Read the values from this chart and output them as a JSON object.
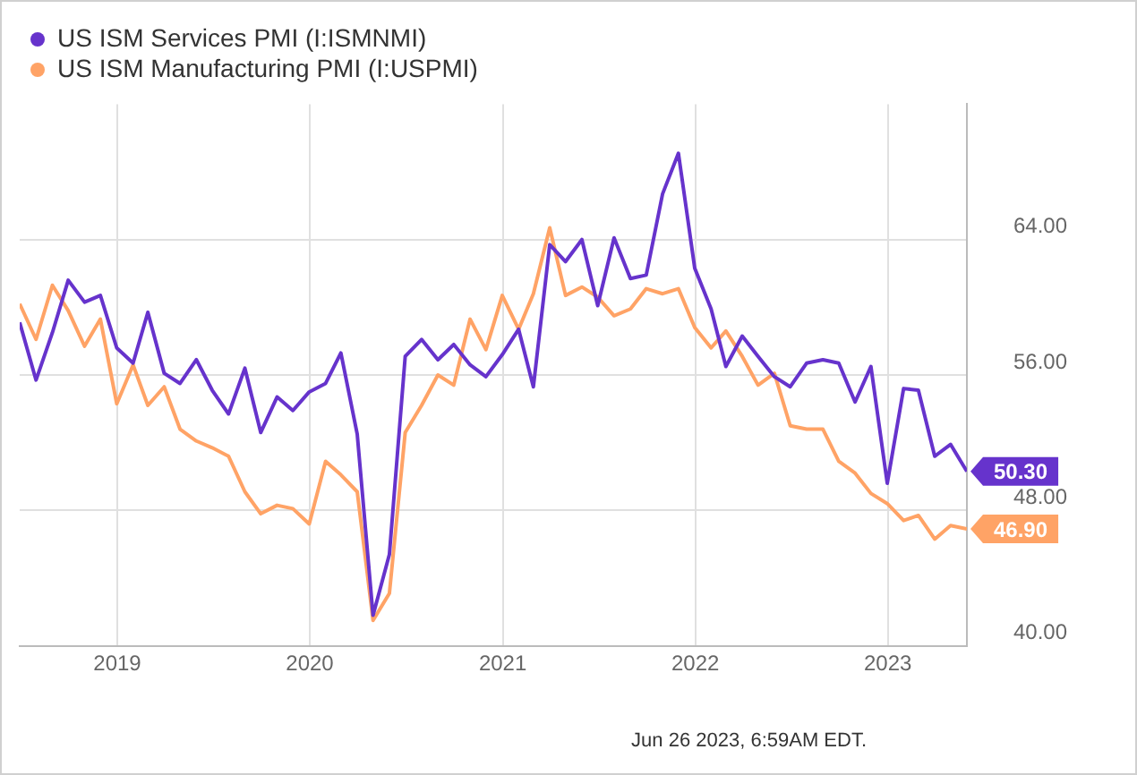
{
  "chart_data": {
    "type": "line",
    "x": [
      "2018-06-30",
      "2018-07-31",
      "2018-08-31",
      "2018-09-30",
      "2018-10-31",
      "2018-11-30",
      "2018-12-31",
      "2019-01-31",
      "2019-02-28",
      "2019-03-31",
      "2019-04-30",
      "2019-05-31",
      "2019-06-30",
      "2019-07-31",
      "2019-08-31",
      "2019-09-30",
      "2019-10-31",
      "2019-11-30",
      "2019-12-31",
      "2020-01-31",
      "2020-02-29",
      "2020-03-31",
      "2020-04-30",
      "2020-05-31",
      "2020-06-30",
      "2020-07-31",
      "2020-08-31",
      "2020-09-30",
      "2020-10-31",
      "2020-11-30",
      "2020-12-31",
      "2021-01-31",
      "2021-02-28",
      "2021-03-31",
      "2021-04-30",
      "2021-05-31",
      "2021-06-30",
      "2021-07-31",
      "2021-08-31",
      "2021-09-30",
      "2021-10-31",
      "2021-11-30",
      "2021-12-31",
      "2022-01-31",
      "2022-02-28",
      "2022-03-31",
      "2022-04-30",
      "2022-05-31",
      "2022-06-30",
      "2022-07-31",
      "2022-08-31",
      "2022-09-30",
      "2022-10-31",
      "2022-11-30",
      "2022-12-31",
      "2023-01-31",
      "2023-02-28",
      "2023-03-31",
      "2023-04-30",
      "2023-05-31"
    ],
    "series": [
      {
        "name": "US ISM Services PMI (I:ISMNMI)",
        "color": "#6633cc",
        "values": [
          59.1,
          55.7,
          58.5,
          61.6,
          60.3,
          60.7,
          57.6,
          56.7,
          59.7,
          56.1,
          55.5,
          56.9,
          55.1,
          53.7,
          56.4,
          52.6,
          54.7,
          53.9,
          55.0,
          55.5,
          57.3,
          52.5,
          41.8,
          45.4,
          57.1,
          58.1,
          56.9,
          57.8,
          56.6,
          55.9,
          57.2,
          58.7,
          55.3,
          63.7,
          62.7,
          64.0,
          60.1,
          64.1,
          61.7,
          61.9,
          66.7,
          69.1,
          62.3,
          59.9,
          56.5,
          58.3,
          57.1,
          55.9,
          55.3,
          56.7,
          56.9,
          56.7,
          54.4,
          56.5,
          49.6,
          55.2,
          55.1,
          51.2,
          51.9,
          50.3
        ],
        "value_labels": [
          null,
          null,
          null,
          null,
          null,
          null,
          null,
          null,
          null,
          null,
          null,
          null,
          null,
          null,
          null,
          null,
          null,
          null,
          null,
          null,
          null,
          null,
          null,
          null,
          null,
          null,
          null,
          null,
          null,
          null,
          null,
          null,
          null,
          null,
          null,
          null,
          null,
          null,
          null,
          null,
          null,
          null,
          null,
          null,
          null,
          null,
          null,
          null,
          null,
          null,
          null,
          null,
          null,
          null,
          null,
          null,
          null,
          null,
          null,
          "50.30"
        ]
      },
      {
        "name": "US ISM Manufacturing PMI (I:USPMI)",
        "color": "#ffa366",
        "values": [
          60.2,
          58.1,
          61.3,
          59.8,
          57.7,
          59.3,
          54.3,
          56.6,
          54.2,
          55.3,
          52.8,
          52.1,
          51.7,
          51.2,
          49.1,
          47.8,
          48.3,
          48.1,
          47.2,
          50.9,
          50.1,
          49.1,
          41.5,
          43.1,
          52.6,
          54.2,
          56.0,
          55.4,
          59.3,
          57.5,
          60.7,
          58.7,
          60.8,
          64.7,
          60.7,
          61.2,
          60.6,
          59.5,
          59.9,
          61.1,
          60.8,
          61.1,
          58.8,
          57.6,
          58.6,
          57.1,
          55.4,
          56.1,
          53.0,
          52.8,
          52.8,
          50.9,
          50.2,
          49.0,
          48.4,
          47.4,
          47.7,
          46.3,
          47.1,
          46.9
        ],
        "value_labels": [
          null,
          null,
          null,
          null,
          null,
          null,
          null,
          null,
          null,
          null,
          null,
          null,
          null,
          null,
          null,
          null,
          null,
          null,
          null,
          null,
          null,
          null,
          null,
          null,
          null,
          null,
          null,
          null,
          null,
          null,
          null,
          null,
          null,
          null,
          null,
          null,
          null,
          null,
          null,
          null,
          null,
          null,
          null,
          null,
          null,
          null,
          null,
          null,
          null,
          null,
          null,
          null,
          null,
          null,
          null,
          null,
          null,
          null,
          null,
          "46.90"
        ]
      }
    ],
    "xlim": [
      "2018-06-30",
      "2023-05-31"
    ],
    "xticks": [
      "2019",
      "2020",
      "2021",
      "2022",
      "2023"
    ],
    "ylim": [
      40,
      72
    ],
    "yticks": [
      {
        "value": 40,
        "label": "40.00"
      },
      {
        "value": 48,
        "label": "48.00"
      },
      {
        "value": 56,
        "label": "56.00"
      },
      {
        "value": 64,
        "label": "64.00"
      }
    ],
    "grid": true,
    "legend": "top left",
    "marker": "none",
    "line_style": "solid",
    "annotations": [
      "Jun 26 2023, 6:59AM EDT."
    ]
  }
}
